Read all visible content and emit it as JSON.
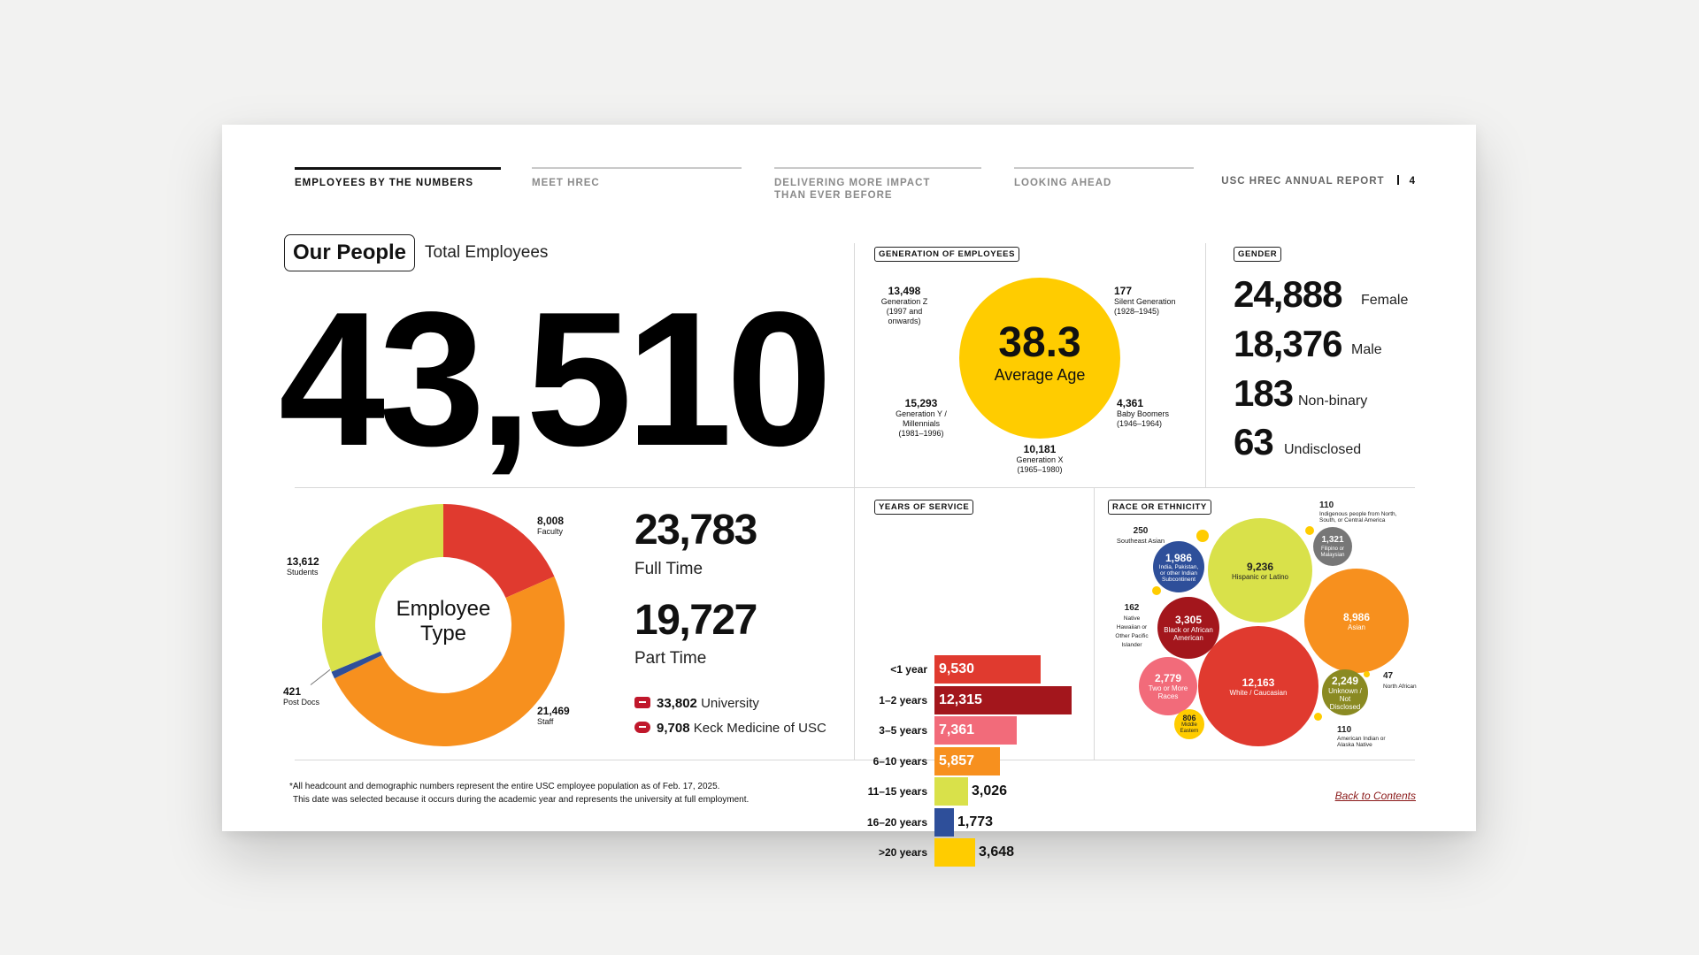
{
  "nav": {
    "tabs": [
      {
        "label": "EMPLOYEES BY THE NUMBERS"
      },
      {
        "label": "MEET HREC"
      },
      {
        "label": "DELIVERING MORE IMPACT\nTHAN EVER BEFORE"
      },
      {
        "label": "LOOKING AHEAD"
      }
    ],
    "report_title": "USC HREC ANNUAL REPORT",
    "page_number": "4"
  },
  "people": {
    "pill": "Our People",
    "total_label": "Total Employees",
    "total": "43,510"
  },
  "generation": {
    "tag": "GENERATION OF EMPLOYEES",
    "average_value": "38.3",
    "average_label": "Average Age",
    "groups": [
      {
        "value": "13,498",
        "name": "Generation Z",
        "years": "(1997 and onwards)"
      },
      {
        "value": "177",
        "name": "Silent Generation",
        "years": "(1928–1945)"
      },
      {
        "value": "15,293",
        "name": "Generation Y /\nMillennials",
        "years": "(1981–1996)"
      },
      {
        "value": "4,361",
        "name": "Baby Boomers",
        "years": "(1946–1964)"
      },
      {
        "value": "10,181",
        "name": "Generation X",
        "years": "(1965–1980)"
      }
    ]
  },
  "gender": {
    "tag": "GENDER",
    "rows": [
      {
        "value": "24,888",
        "label": "Female"
      },
      {
        "value": "18,376",
        "label": "Male"
      },
      {
        "value": "183",
        "label": "Non-binary"
      },
      {
        "value": "63",
        "label": "Undisclosed"
      }
    ]
  },
  "employee_type": {
    "center_line1": "Employee",
    "center_line2": "Type",
    "segments": [
      {
        "value": "8,008",
        "label": "Faculty",
        "count": 8008,
        "color": "#e03a2f"
      },
      {
        "value": "21,469",
        "label": "Staff",
        "count": 21469,
        "color": "#f7901e"
      },
      {
        "value": "421",
        "label": "Post Docs",
        "count": 421,
        "color": "#2e4f9a"
      },
      {
        "value": "13,612",
        "label": "Students",
        "count": 13612,
        "color": "#d9e14a"
      }
    ],
    "full_time_value": "23,783",
    "full_time_label": "Full Time",
    "part_time_value": "19,727",
    "part_time_label": "Part Time",
    "university_value": "33,802",
    "university_label": "University",
    "keck_value": "9,708",
    "keck_label": "Keck Medicine of USC"
  },
  "chart_data": {
    "type": "bar",
    "title": "YEARS OF SERVICE",
    "categories": [
      "<1 year",
      "1–2 years",
      "3–5 years",
      "6–10 years",
      "11–15 years",
      "16–20 years",
      ">20 years"
    ],
    "values": [
      9530,
      12315,
      7361,
      5857,
      3026,
      1773,
      3648
    ],
    "labels": [
      "9,530",
      "12,315",
      "7,361",
      "5,857",
      "3,026",
      "1,773",
      "3,648"
    ],
    "colors": [
      "#e03a2f",
      "#a3161c",
      "#f26b7a",
      "#f7901e",
      "#d9e14a",
      "#2e4f9a",
      "#ffcc00"
    ],
    "orientation": "horizontal"
  },
  "race": {
    "tag": "RACE OR ETHNICITY",
    "groups": [
      {
        "value": "9,236",
        "label": "Hispanic or Latino",
        "color": "#d9e14a"
      },
      {
        "value": "8,986",
        "label": "Asian",
        "color": "#f7901e"
      },
      {
        "value": "12,163",
        "label": "White / Caucasian",
        "color": "#e03a2f"
      },
      {
        "value": "3,305",
        "label": "Black or African American",
        "color": "#a3161c"
      },
      {
        "value": "2,779",
        "label": "Two or More Races",
        "color": "#f26b7a"
      },
      {
        "value": "2,249",
        "label": "Unknown / Not Disclosed",
        "color": "#8a8a22"
      },
      {
        "value": "1,986",
        "label": "India, Pakistan, or other Indian Subcontinent",
        "color": "#2e4f9a"
      },
      {
        "value": "1,321",
        "label": "Filipino or Malaysian",
        "color": "#777777"
      },
      {
        "value": "806",
        "label": "Middle Eastern",
        "color": "#ffcc00"
      },
      {
        "value": "250",
        "label": "Southeast Asian",
        "color": "#ffcc00"
      },
      {
        "value": "110",
        "label": "Indigenous people from North, South, or Central America",
        "color": "#ffcc00"
      },
      {
        "value": "162",
        "label": "Native Hawaiian or Other Pacific Islander",
        "color": "#ffcc00"
      },
      {
        "value": "47",
        "label": "North African",
        "color": "#ffcc00"
      },
      {
        "value": "110",
        "label": "American Indian or Alaska Native",
        "color": "#ffcc00"
      }
    ]
  },
  "footer": {
    "note_line1": "*All headcount and demographic numbers represent the entire USC employee population as of Feb. 17, 2025.",
    "note_line2": "This date was selected because it occurs during the academic year and represents the university at full employment.",
    "back_link": "Back to Contents"
  }
}
